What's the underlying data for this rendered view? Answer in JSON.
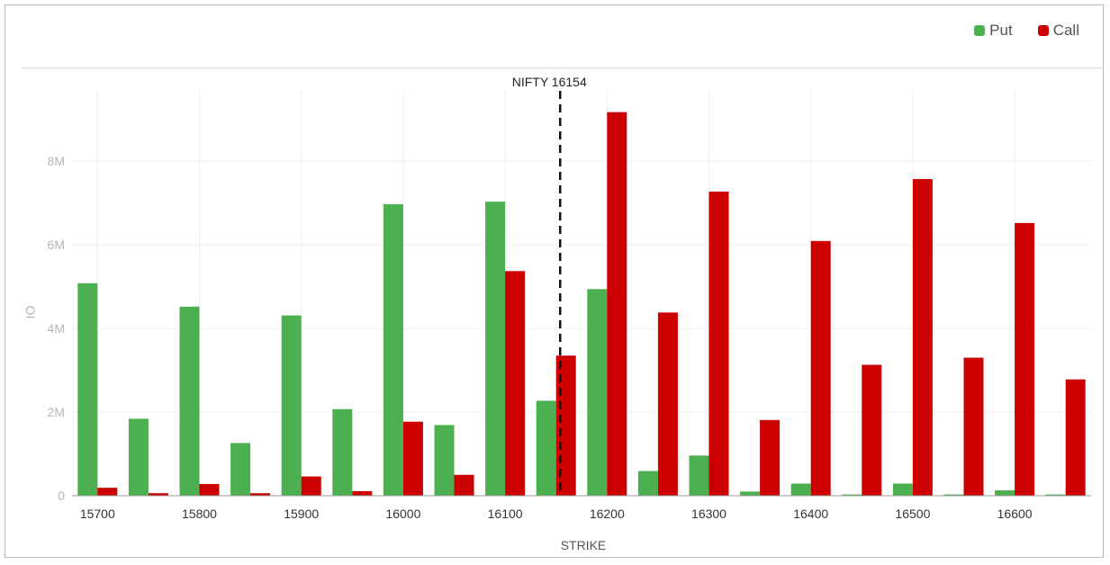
{
  "legend": {
    "put_label": "Put",
    "call_label": "Call",
    "put_color": "#4caf50",
    "call_color": "#cc0000"
  },
  "chart_data": {
    "type": "bar",
    "xlabel": "STRIKE",
    "ylabel": "OI",
    "ylim": [
      0,
      9700000
    ],
    "y_ticks": [
      0,
      2000000,
      4000000,
      6000000,
      8000000
    ],
    "y_tick_labels": [
      "0",
      "2M",
      "4M",
      "6M",
      "8M"
    ],
    "categories": [
      "15700",
      "15750",
      "15800",
      "15850",
      "15900",
      "15950",
      "16000",
      "16050",
      "16100",
      "16150",
      "16200",
      "16250",
      "16300",
      "16350",
      "16400",
      "16450",
      "16500",
      "16550",
      "16600",
      "16650"
    ],
    "x_tick_labels": [
      "15700",
      "",
      "15800",
      "",
      "15900",
      "",
      "16000",
      "",
      "16100",
      "",
      "16200",
      "",
      "16300",
      "",
      "16400",
      "",
      "16500",
      "",
      "16600",
      ""
    ],
    "series": [
      {
        "name": "Put",
        "color": "#4caf50",
        "values": [
          5080000,
          1840000,
          4520000,
          1260000,
          4310000,
          2070000,
          6970000,
          1690000,
          7030000,
          2270000,
          4940000,
          590000,
          960000,
          100000,
          290000,
          30000,
          290000,
          30000,
          130000,
          30000
        ]
      },
      {
        "name": "Call",
        "color": "#cc0000",
        "values": [
          190000,
          60000,
          280000,
          60000,
          460000,
          110000,
          1770000,
          500000,
          5370000,
          3350000,
          9170000,
          4380000,
          7270000,
          1810000,
          6090000,
          3130000,
          7570000,
          3300000,
          6520000,
          2780000
        ]
      }
    ],
    "marker": {
      "label": "NIFTY 16154",
      "x": 16154
    },
    "grid": true,
    "legend_position": "top-right"
  }
}
